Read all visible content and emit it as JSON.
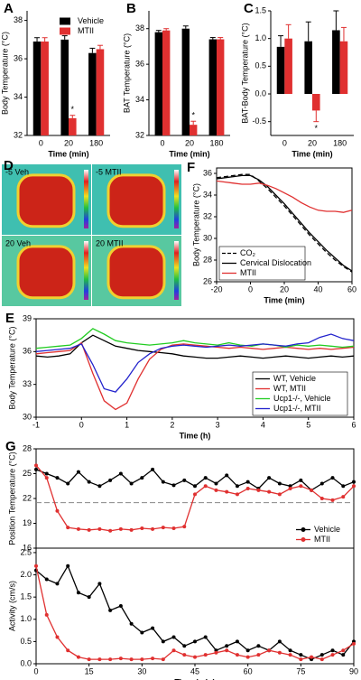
{
  "chart_data": [
    {
      "type": "bar",
      "panel": "A",
      "ylabel": "Body Temperature (°C)",
      "xlabel": "Time (min)",
      "categories": [
        "0",
        "20",
        "180"
      ],
      "series": [
        {
          "name": "Vehicle",
          "color": "#000000",
          "values": [
            36.9,
            37.0,
            36.3
          ],
          "errors": [
            0.2,
            0.2,
            0.25
          ]
        },
        {
          "name": "MTII",
          "color": "#e03030",
          "values": [
            36.9,
            32.9,
            36.5
          ],
          "errors": [
            0.2,
            0.15,
            0.2
          ]
        }
      ],
      "ylim": [
        32,
        38.5
      ],
      "yticks": [
        32,
        34,
        36,
        38
      ],
      "annotation": "*",
      "legend": "top-right"
    },
    {
      "type": "bar",
      "panel": "B",
      "ylabel": "BAT Temperature (°C)",
      "xlabel": "Time (min)",
      "categories": [
        "0",
        "20",
        "180"
      ],
      "series": [
        {
          "color": "#000000",
          "values": [
            37.8,
            38.0,
            37.4
          ],
          "errors": [
            0.1,
            0.15,
            0.1
          ]
        },
        {
          "color": "#e03030",
          "values": [
            37.9,
            32.6,
            37.4
          ],
          "errors": [
            0.1,
            0.2,
            0.1
          ]
        }
      ],
      "ylim": [
        32,
        39
      ],
      "yticks": [
        32,
        34,
        36,
        38
      ],
      "annotation": "*"
    },
    {
      "type": "bar",
      "panel": "C",
      "ylabel": "BAT-Body Temperature (°C)",
      "xlabel": "Time (min)",
      "categories": [
        "0",
        "20",
        "180"
      ],
      "series": [
        {
          "color": "#000000",
          "values": [
            0.85,
            0.95,
            1.15
          ],
          "errors": [
            0.2,
            0.35,
            0.35
          ]
        },
        {
          "color": "#e03030",
          "values": [
            1.0,
            -0.3,
            0.95
          ],
          "errors": [
            0.25,
            0.2,
            0.25
          ]
        }
      ],
      "ylim": [
        -0.75,
        1.5
      ],
      "yticks": [
        -0.5,
        {
          "value": 0,
          "label": "0.0"
        },
        0.5,
        {
          "value": 1,
          "label": "1.0"
        },
        1.5
      ],
      "annotation": "*"
    },
    {
      "type": "image",
      "panel": "D",
      "labels": [
        "-5 Veh",
        "-5 MTII",
        "20 Veh",
        "20 MTII"
      ]
    },
    {
      "type": "line",
      "panel": "F",
      "ylabel": "Body Temperature (°C)",
      "xlabel": "Time (min)",
      "x": [
        -20,
        -15,
        -10,
        -5,
        0,
        5,
        10,
        15,
        20,
        25,
        30,
        35,
        40,
        45,
        50,
        55,
        60
      ],
      "series": [
        {
          "name": "CO₂",
          "color": "#000000",
          "dash": true,
          "values": [
            35.6,
            35.7,
            35.8,
            35.9,
            35.9,
            35.3,
            34.6,
            33.8,
            33.0,
            32.1,
            31.2,
            30.3,
            29.5,
            28.7,
            28.0,
            27.4,
            26.9
          ]
        },
        {
          "name": "Cervical Dislocation",
          "color": "#000000",
          "values": [
            35.5,
            35.6,
            35.7,
            35.8,
            35.8,
            35.4,
            34.8,
            34.0,
            33.2,
            32.3,
            31.4,
            30.5,
            29.7,
            28.9,
            28.2,
            27.5,
            27.0
          ]
        },
        {
          "name": "MTII",
          "color": "#e03030",
          "values": [
            35.3,
            35.2,
            35.1,
            35.0,
            35.0,
            35.1,
            34.9,
            34.6,
            34.2,
            33.8,
            33.3,
            32.9,
            32.6,
            32.5,
            32.5,
            32.4,
            32.6
          ]
        }
      ],
      "xlim": [
        -20,
        60
      ],
      "xticks": [
        -20,
        0,
        20,
        40,
        60
      ],
      "ylim": [
        26,
        36.5
      ],
      "yticks": [
        26,
        28,
        30,
        32,
        34,
        36
      ],
      "legend": "bottom-left"
    },
    {
      "type": "line",
      "panel": "E",
      "ylabel": "Body Temperature (°C)",
      "xlabel": "Time (h)",
      "x": [
        -1,
        -0.75,
        -0.5,
        -0.25,
        0,
        0.25,
        0.5,
        0.75,
        1,
        1.25,
        1.5,
        1.75,
        2,
        2.25,
        2.5,
        2.75,
        3,
        3.25,
        3.5,
        3.75,
        4,
        4.25,
        4.5,
        4.75,
        5,
        5.25,
        5.5,
        5.75,
        6
      ],
      "series": [
        {
          "name": "WT, Vehicle",
          "color": "#000000",
          "values": [
            35.6,
            35.5,
            35.6,
            35.8,
            36.8,
            37.5,
            37.0,
            36.5,
            36.3,
            36.1,
            36.0,
            35.9,
            35.8,
            35.6,
            35.5,
            35.4,
            35.4,
            35.5,
            35.6,
            35.5,
            35.4,
            35.5,
            35.6,
            35.5,
            35.4,
            35.5,
            35.6,
            35.5,
            35.6
          ]
        },
        {
          "name": "WT, MTII",
          "color": "#e03030",
          "values": [
            35.8,
            35.9,
            36.0,
            36.1,
            36.8,
            34.0,
            31.5,
            30.7,
            31.3,
            33.5,
            35.3,
            36.2,
            36.6,
            36.7,
            36.6,
            36.5,
            36.4,
            36.3,
            36.4,
            36.3,
            36.2,
            36.3,
            36.4,
            36.3,
            36.2,
            36.3,
            36.2,
            36.3,
            36.4
          ]
        },
        {
          "name": "Ucp1-/-, Vehicle",
          "color": "#22cc22",
          "values": [
            36.3,
            36.4,
            36.5,
            36.6,
            37.2,
            38.1,
            37.6,
            37.0,
            36.8,
            36.7,
            36.6,
            36.7,
            36.8,
            37.0,
            36.8,
            36.7,
            36.6,
            36.8,
            36.6,
            36.5,
            36.7,
            36.6,
            36.4,
            36.6,
            36.5,
            36.6,
            36.5,
            36.4,
            36.5
          ]
        },
        {
          "name": "Ucp1-/-, MTII",
          "color": "#2222cc",
          "values": [
            36.0,
            36.1,
            36.2,
            36.3,
            36.7,
            34.8,
            32.6,
            32.3,
            33.5,
            35.0,
            35.8,
            36.3,
            36.5,
            36.6,
            36.5,
            36.4,
            36.5,
            36.6,
            36.5,
            36.6,
            36.7,
            36.6,
            36.5,
            36.7,
            36.8,
            37.3,
            37.6,
            37.2,
            37.0
          ]
        }
      ],
      "xlim": [
        -1,
        6
      ],
      "xticks": [
        -1,
        0,
        1,
        2,
        3,
        4,
        5,
        6
      ],
      "ylim": [
        30,
        39
      ],
      "yticks": [
        30,
        33,
        36,
        39
      ],
      "legend": "bottom-right"
    },
    {
      "type": "line",
      "panel": "G",
      "ylabel": "Position Temperature (°C)",
      "markers": true,
      "x": [
        0,
        3,
        6,
        9,
        12,
        15,
        18,
        21,
        24,
        27,
        30,
        33,
        36,
        39,
        42,
        45,
        48,
        51,
        54,
        57,
        60,
        63,
        66,
        69,
        72,
        75,
        78,
        81,
        84,
        87,
        90
      ],
      "series": [
        {
          "name": "Vehicle",
          "color": "#000000",
          "values": [
            25.5,
            25.0,
            24.5,
            23.8,
            25.2,
            24.0,
            23.5,
            24.2,
            25.0,
            23.8,
            24.5,
            25.5,
            24.0,
            23.6,
            24.2,
            23.5,
            24.5,
            23.8,
            24.8,
            23.5,
            24.0,
            23.2,
            24.5,
            23.8,
            23.5,
            24.2,
            23.0,
            23.8,
            24.5,
            23.5,
            24.0
          ]
        },
        {
          "name": "MTII",
          "color": "#e03030",
          "values": [
            26.0,
            24.5,
            20.5,
            18.5,
            18.3,
            18.2,
            18.3,
            18.1,
            18.3,
            18.2,
            18.4,
            18.3,
            18.5,
            18.4,
            18.6,
            22.5,
            23.5,
            23.0,
            22.8,
            22.5,
            23.2,
            23.0,
            22.8,
            22.5,
            23.2,
            23.5,
            23.0,
            22.0,
            21.8,
            22.2,
            23.5
          ]
        }
      ],
      "hline": 21.5,
      "xlim": [
        0,
        90
      ],
      "ylim": [
        16,
        28
      ],
      "yticks": [
        16,
        19,
        22,
        25,
        28
      ],
      "legend": "bottom-right"
    },
    {
      "type": "line",
      "ylabel": "Activity (cm/s)",
      "xlabel": "Time (min)",
      "markers": true,
      "x": [
        0,
        3,
        6,
        9,
        12,
        15,
        18,
        21,
        24,
        27,
        30,
        33,
        36,
        39,
        42,
        45,
        48,
        51,
        54,
        57,
        60,
        63,
        66,
        69,
        72,
        75,
        78,
        81,
        84,
        87,
        90
      ],
      "series": [
        {
          "color": "#000000",
          "values": [
            2.1,
            1.9,
            1.8,
            2.2,
            1.6,
            1.5,
            1.8,
            1.2,
            1.3,
            0.9,
            0.7,
            0.8,
            0.5,
            0.6,
            0.4,
            0.5,
            0.6,
            0.3,
            0.4,
            0.5,
            0.3,
            0.4,
            0.3,
            0.5,
            0.3,
            0.2,
            0.1,
            0.2,
            0.3,
            0.2,
            0.5
          ]
        },
        {
          "color": "#e03030",
          "values": [
            2.2,
            1.1,
            0.6,
            0.3,
            0.15,
            0.1,
            0.1,
            0.1,
            0.12,
            0.1,
            0.1,
            0.12,
            0.1,
            0.3,
            0.2,
            0.15,
            0.2,
            0.25,
            0.3,
            0.2,
            0.15,
            0.2,
            0.3,
            0.25,
            0.2,
            0.1,
            0.15,
            0.1,
            0.2,
            0.3,
            0.45
          ]
        }
      ],
      "xlim": [
        0,
        90
      ],
      "xticks": [
        0,
        15,
        30,
        45,
        60,
        75,
        90
      ],
      "ylim": [
        0,
        2.6
      ],
      "yticks": [
        {
          "value": 0,
          "label": "0.0"
        },
        0.5,
        {
          "value": 1,
          "label": "1.0"
        },
        1.5,
        {
          "value": 2,
          "label": "2.0"
        },
        2.5
      ]
    }
  ]
}
